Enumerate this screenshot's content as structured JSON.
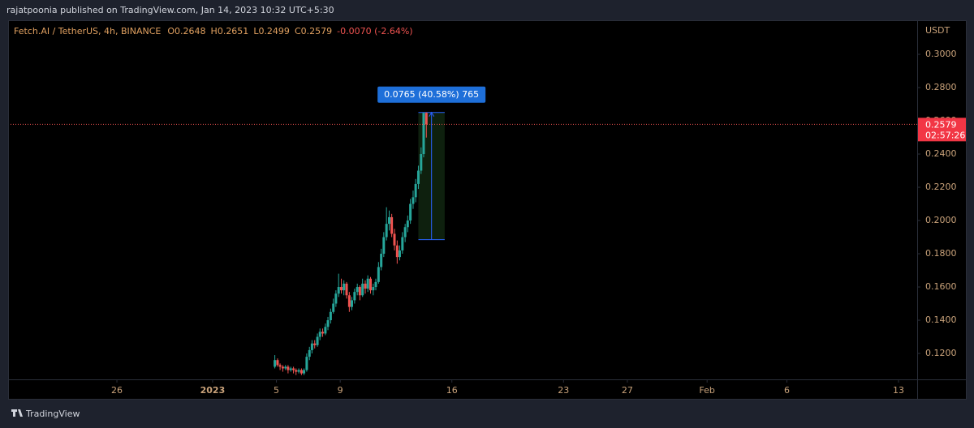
{
  "header": "rajatpoonia published on TradingView.com, Jan 14, 2023 10:32 UTC+5:30",
  "footer": "TradingView",
  "chart_data": {
    "type": "candlestick",
    "symbol": "Fetch.AI / TetherUS, 4h, BINANCE",
    "legend_values": [
      "O0.2648",
      "H0.2651",
      "L0.2499",
      "C0.2579",
      "-0.0070 (-2.64%)"
    ],
    "currency": "USDT",
    "up_color": "#26a69a",
    "down_color": "#ef5350",
    "ylim": [
      0.1044,
      0.3205
    ],
    "yticks": [
      {
        "value": 0.12,
        "label": "0.1200"
      },
      {
        "value": 0.14,
        "label": "0.1400"
      },
      {
        "value": 0.16,
        "label": "0.1600"
      },
      {
        "value": 0.18,
        "label": "0.1800"
      },
      {
        "value": 0.2,
        "label": "0.2000"
      },
      {
        "value": 0.22,
        "label": "0.2200"
      },
      {
        "value": 0.24,
        "label": "0.2400"
      },
      {
        "value": 0.26,
        "label": "0.2600"
      },
      {
        "value": 0.28,
        "label": "0.2800"
      },
      {
        "value": 0.3,
        "label": "0.3000"
      }
    ],
    "xlim": [
      -12.82,
      44.17
    ],
    "xticks": [
      {
        "value": -6,
        "label": "26"
      },
      {
        "value": 0,
        "label": "2023"
      },
      {
        "value": 4,
        "label": "5"
      },
      {
        "value": 8,
        "label": "9"
      },
      {
        "value": 15,
        "label": "16"
      },
      {
        "value": 22,
        "label": "23"
      },
      {
        "value": 26,
        "label": "27"
      },
      {
        "value": 31,
        "label": "Feb"
      },
      {
        "value": 36,
        "label": "6"
      },
      {
        "value": 43,
        "label": "13"
      }
    ],
    "x": [
      3.9,
      4.07,
      4.23,
      4.4,
      4.57,
      4.73,
      4.9,
      5.07,
      5.23,
      5.4,
      5.57,
      5.73,
      5.9,
      6.07,
      6.23,
      6.4,
      6.57,
      6.73,
      6.9,
      7.07,
      7.23,
      7.4,
      7.57,
      7.73,
      7.9,
      8.07,
      8.23,
      8.4,
      8.57,
      8.73,
      8.9,
      9.07,
      9.23,
      9.4,
      9.57,
      9.73,
      9.9,
      10.07,
      10.23,
      10.4,
      10.57,
      10.73,
      10.9,
      11.07,
      11.23,
      11.4,
      11.57,
      11.73,
      11.9,
      12.07,
      12.23,
      12.4,
      12.57,
      12.73,
      12.9,
      13.07,
      13.23,
      13.4
    ],
    "ohlc": [
      [
        0.112,
        0.119,
        0.111,
        0.116
      ],
      [
        0.116,
        0.117,
        0.112,
        0.113
      ],
      [
        0.113,
        0.114,
        0.11,
        0.112
      ],
      [
        0.112,
        0.113,
        0.109,
        0.111
      ],
      [
        0.111,
        0.113,
        0.11,
        0.112
      ],
      [
        0.112,
        0.113,
        0.108,
        0.11
      ],
      [
        0.11,
        0.112,
        0.109,
        0.111
      ],
      [
        0.111,
        0.112,
        0.108,
        0.11
      ],
      [
        0.11,
        0.111,
        0.107,
        0.109
      ],
      [
        0.109,
        0.111,
        0.108,
        0.11
      ],
      [
        0.11,
        0.111,
        0.107,
        0.108
      ],
      [
        0.108,
        0.111,
        0.107,
        0.11
      ],
      [
        0.11,
        0.12,
        0.109,
        0.118
      ],
      [
        0.118,
        0.124,
        0.116,
        0.122
      ],
      [
        0.122,
        0.128,
        0.12,
        0.126
      ],
      [
        0.126,
        0.128,
        0.123,
        0.125
      ],
      [
        0.125,
        0.132,
        0.124,
        0.13
      ],
      [
        0.13,
        0.135,
        0.128,
        0.133
      ],
      [
        0.133,
        0.135,
        0.13,
        0.132
      ],
      [
        0.132,
        0.138,
        0.131,
        0.136
      ],
      [
        0.136,
        0.142,
        0.134,
        0.14
      ],
      [
        0.14,
        0.147,
        0.138,
        0.145
      ],
      [
        0.145,
        0.153,
        0.144,
        0.15
      ],
      [
        0.15,
        0.158,
        0.148,
        0.156
      ],
      [
        0.156,
        0.168,
        0.154,
        0.16
      ],
      [
        0.16,
        0.165,
        0.156,
        0.158
      ],
      [
        0.158,
        0.164,
        0.155,
        0.162
      ],
      [
        0.162,
        0.163,
        0.153,
        0.155
      ],
      [
        0.155,
        0.157,
        0.145,
        0.148
      ],
      [
        0.148,
        0.154,
        0.146,
        0.152
      ],
      [
        0.152,
        0.159,
        0.15,
        0.157
      ],
      [
        0.157,
        0.162,
        0.155,
        0.16
      ],
      [
        0.16,
        0.161,
        0.152,
        0.155
      ],
      [
        0.155,
        0.165,
        0.154,
        0.162
      ],
      [
        0.162,
        0.164,
        0.156,
        0.159
      ],
      [
        0.159,
        0.167,
        0.157,
        0.165
      ],
      [
        0.165,
        0.166,
        0.156,
        0.158
      ],
      [
        0.158,
        0.162,
        0.155,
        0.16
      ],
      [
        0.16,
        0.165,
        0.158,
        0.163
      ],
      [
        0.163,
        0.175,
        0.162,
        0.172
      ],
      [
        0.172,
        0.183,
        0.17,
        0.18
      ],
      [
        0.18,
        0.193,
        0.178,
        0.19
      ],
      [
        0.19,
        0.208,
        0.188,
        0.198
      ],
      [
        0.198,
        0.206,
        0.194,
        0.202
      ],
      [
        0.202,
        0.204,
        0.19,
        0.192
      ],
      [
        0.192,
        0.195,
        0.182,
        0.185
      ],
      [
        0.185,
        0.188,
        0.174,
        0.178
      ],
      [
        0.178,
        0.185,
        0.176,
        0.182
      ],
      [
        0.182,
        0.193,
        0.18,
        0.19
      ],
      [
        0.19,
        0.198,
        0.187,
        0.196
      ],
      [
        0.196,
        0.203,
        0.193,
        0.2
      ],
      [
        0.2,
        0.213,
        0.198,
        0.21
      ],
      [
        0.21,
        0.218,
        0.207,
        0.214
      ],
      [
        0.214,
        0.225,
        0.211,
        0.222
      ],
      [
        0.222,
        0.233,
        0.219,
        0.23
      ],
      [
        0.23,
        0.244,
        0.228,
        0.24
      ],
      [
        0.24,
        0.265,
        0.238,
        0.2648
      ],
      [
        0.2648,
        0.2651,
        0.2499,
        0.2579
      ]
    ],
    "last_price": 0.2579,
    "countdown": "02:57:26",
    "measure": {
      "label": "0.0765 (40.58%) 765",
      "from": 0.1885,
      "to": 0.265,
      "x_start": 12.9,
      "x_end": 14.55
    }
  }
}
